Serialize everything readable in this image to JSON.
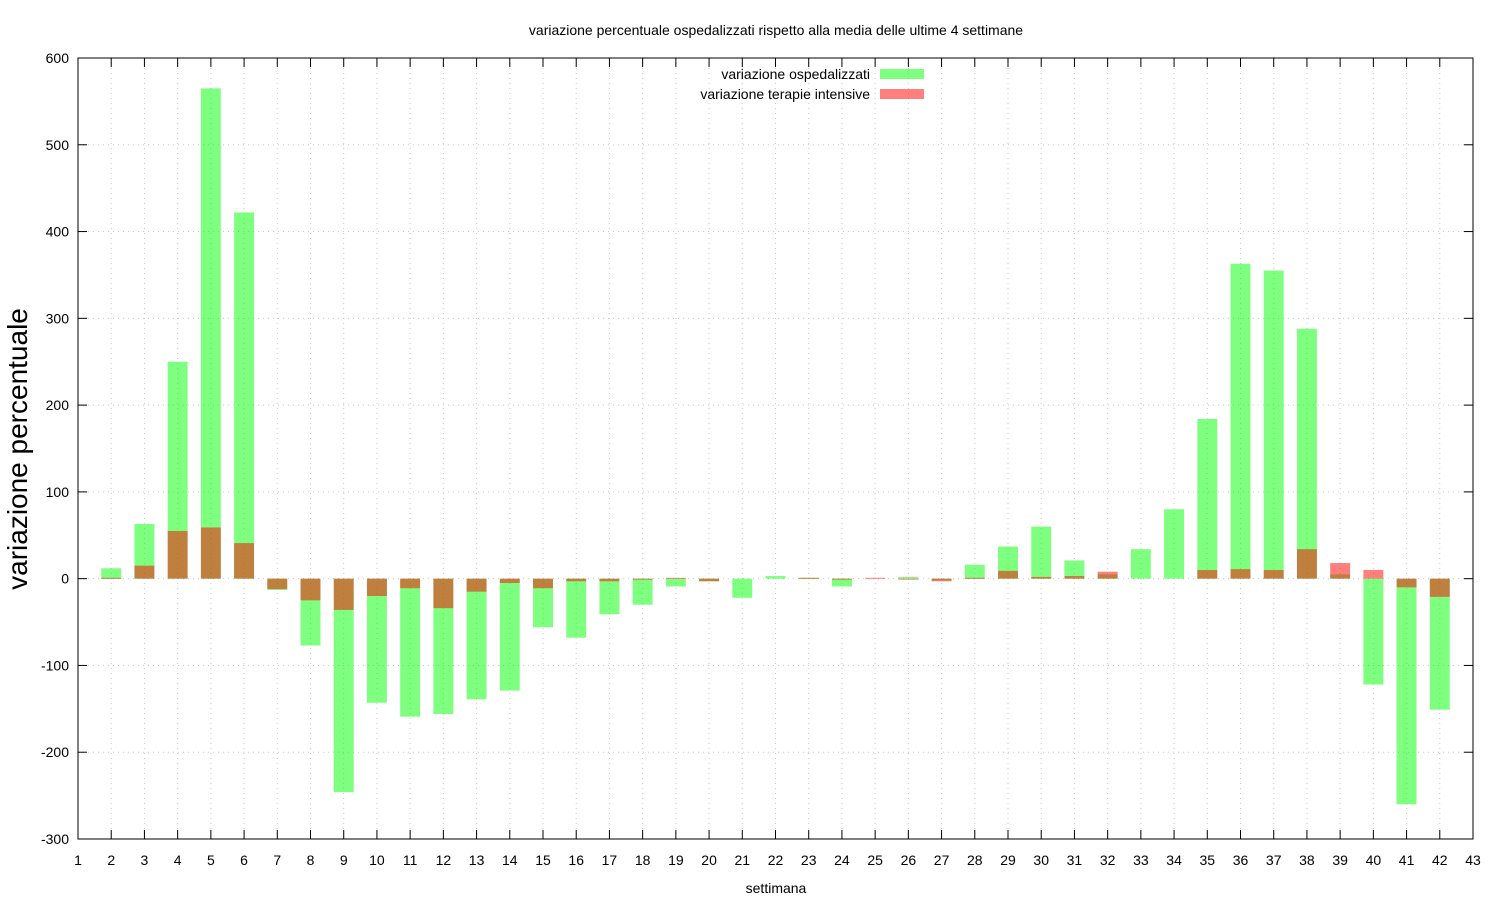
{
  "chart_data": {
    "type": "bar",
    "title": "variazione percentuale ospedalizzati rispetto alla media delle ultime 4 settimane",
    "xlabel": "settimana",
    "ylabel": "variazione percentuale",
    "xlim": [
      1,
      43
    ],
    "ylim": [
      -300,
      600
    ],
    "yticks": [
      -300,
      -200,
      -100,
      0,
      100,
      200,
      300,
      400,
      500,
      600
    ],
    "xticks": [
      1,
      2,
      3,
      4,
      5,
      6,
      7,
      8,
      9,
      10,
      11,
      12,
      13,
      14,
      15,
      16,
      17,
      18,
      19,
      20,
      21,
      22,
      23,
      24,
      25,
      26,
      27,
      28,
      29,
      30,
      31,
      32,
      33,
      34,
      35,
      36,
      37,
      38,
      39,
      40,
      41,
      42,
      43
    ],
    "grid": true,
    "legend_position": "top-center",
    "x": [
      2,
      3,
      4,
      5,
      6,
      7,
      8,
      9,
      10,
      11,
      12,
      13,
      14,
      15,
      16,
      17,
      18,
      19,
      20,
      21,
      22,
      23,
      24,
      25,
      26,
      27,
      28,
      29,
      30,
      31,
      32,
      33,
      34,
      35,
      36,
      37,
      38,
      39,
      40,
      41,
      42
    ],
    "series": [
      {
        "name": "variazione ospedalizzati",
        "color": "#00ff00",
        "opacity": 0.5,
        "values": [
          12,
          63,
          250,
          565,
          422,
          -13,
          -77,
          -246,
          -143,
          -159,
          -156,
          -139,
          -129,
          -56,
          -68,
          -41,
          -30,
          -9,
          -3,
          -22,
          3,
          1,
          -9,
          0,
          2,
          -2,
          16,
          37,
          60,
          21,
          5,
          34,
          80,
          184,
          363,
          355,
          288,
          5,
          -122,
          -260,
          -151
        ]
      },
      {
        "name": "variazione terapie intensive",
        "color": "#ff0000",
        "opacity": 0.5,
        "values": [
          1,
          15,
          55,
          59,
          41,
          -12,
          -25,
          -36,
          -20,
          -11,
          -34,
          -15,
          -5,
          -11,
          -3,
          -3,
          -1,
          1,
          -3,
          0,
          0,
          1,
          -1,
          1,
          -1,
          -3,
          1,
          9,
          2,
          3,
          8,
          0,
          0,
          10,
          11,
          10,
          34,
          18,
          10,
          -10,
          -21
        ]
      }
    ]
  }
}
